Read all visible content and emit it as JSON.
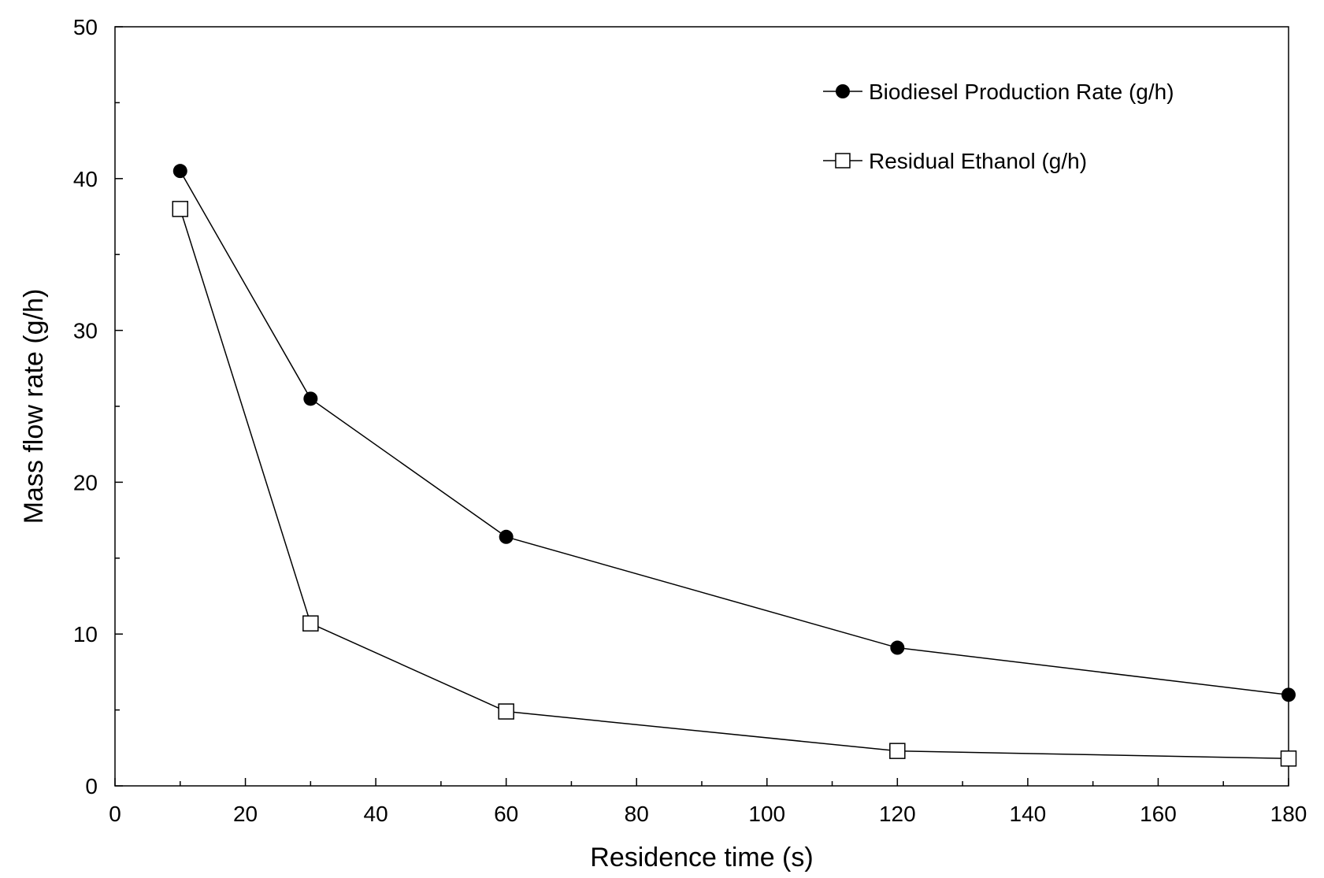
{
  "chart_data": {
    "type": "line",
    "title": "",
    "xlabel": "Residence time (s)",
    "ylabel": "Mass flow rate (g/h)",
    "xlim": [
      0,
      180
    ],
    "ylim": [
      0,
      50
    ],
    "x_ticks": [
      0,
      20,
      40,
      60,
      80,
      100,
      120,
      140,
      160,
      180
    ],
    "y_ticks": [
      0,
      10,
      20,
      30,
      40,
      50
    ],
    "grid": false,
    "legend_position": "top-right",
    "series": [
      {
        "name": "Biodiesel Production Rate (g/h)",
        "marker": "filled-circle",
        "color": "#000000",
        "x": [
          10,
          30,
          60,
          120,
          180
        ],
        "y": [
          40.5,
          25.5,
          16.4,
          9.1,
          6.0
        ]
      },
      {
        "name": "Residual Ethanol (g/h)",
        "marker": "open-square",
        "color": "#000000",
        "x": [
          10,
          30,
          60,
          120,
          180
        ],
        "y": [
          38.0,
          10.7,
          4.9,
          2.3,
          1.8
        ]
      }
    ]
  }
}
